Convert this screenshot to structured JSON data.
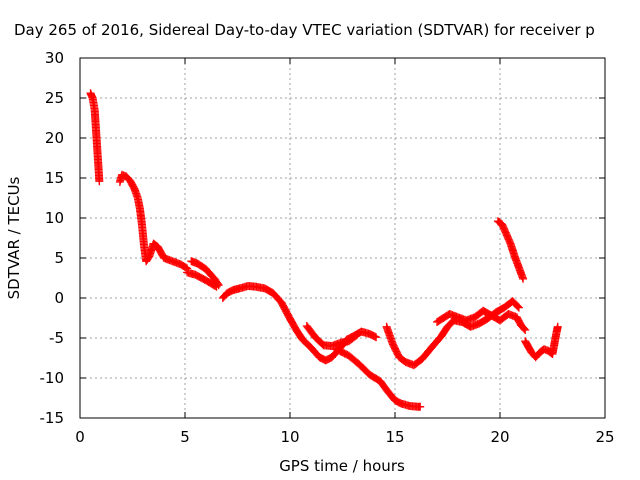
{
  "chart_data": {
    "type": "scatter",
    "title": "Day 265 of 2016, Sidereal Day-to-day VTEC variation (SDTVAR) for receiver p",
    "xlabel": "GPS time / hours",
    "ylabel": "SDTVAR / TECUs",
    "xlim": [
      0,
      25
    ],
    "ylim": [
      -15,
      30
    ],
    "xticks": [
      "0",
      "5",
      "10",
      "15",
      "20",
      "25"
    ],
    "yticks": [
      "30",
      "25",
      "20",
      "15",
      "10",
      "5",
      "0",
      "-5",
      "-10",
      "-15"
    ],
    "grid": true,
    "legend": "none",
    "marker": "plus",
    "color": "#ff0000",
    "series": [
      {
        "segments": [
          [
            [
              0.5,
              25.6
            ],
            [
              0.6,
              25.0
            ],
            [
              0.7,
              23.5
            ],
            [
              0.75,
              21.5
            ],
            [
              0.8,
              19.5
            ],
            [
              0.85,
              17.5
            ],
            [
              0.9,
              15.5
            ],
            [
              0.92,
              14.6
            ]
          ],
          [
            [
              1.9,
              14.5
            ],
            [
              2.0,
              15.4
            ],
            [
              2.2,
              15.2
            ],
            [
              2.4,
              14.6
            ],
            [
              2.6,
              13.6
            ],
            [
              2.75,
              12.5
            ],
            [
              2.85,
              11.2
            ],
            [
              2.95,
              9.2
            ],
            [
              3.05,
              6.5
            ],
            [
              3.15,
              4.6
            ],
            [
              3.3,
              5.2
            ],
            [
              3.5,
              6.8
            ],
            [
              3.7,
              6.4
            ],
            [
              4.0,
              5.0
            ],
            [
              4.4,
              4.6
            ],
            [
              4.8,
              4.2
            ],
            [
              5.1,
              3.7
            ]
          ],
          [
            [
              5.1,
              3.2
            ],
            [
              5.5,
              2.9
            ],
            [
              6.0,
              2.2
            ],
            [
              6.5,
              1.4
            ]
          ],
          [
            [
              5.3,
              4.6
            ],
            [
              5.6,
              4.3
            ],
            [
              6.0,
              3.6
            ],
            [
              6.4,
              2.4
            ],
            [
              6.6,
              1.6
            ]
          ],
          [
            [
              6.8,
              0.0
            ],
            [
              7.0,
              0.6
            ],
            [
              7.3,
              1.0
            ],
            [
              7.6,
              1.2
            ],
            [
              8.0,
              1.5
            ],
            [
              8.4,
              1.4
            ],
            [
              8.8,
              1.2
            ],
            [
              9.2,
              0.6
            ],
            [
              9.6,
              -0.6
            ],
            [
              10.0,
              -2.6
            ],
            [
              10.3,
              -4.0
            ],
            [
              10.6,
              -5.2
            ],
            [
              11.0,
              -6.2
            ],
            [
              11.4,
              -7.4
            ],
            [
              11.7,
              -7.8
            ],
            [
              12.0,
              -7.4
            ],
            [
              12.4,
              -6.2
            ],
            [
              12.7,
              -5.2
            ],
            [
              13.0,
              -4.8
            ],
            [
              13.4,
              -4.2
            ],
            [
              13.8,
              -4.5
            ],
            [
              14.1,
              -4.9
            ]
          ],
          [
            [
              10.8,
              -3.5
            ],
            [
              11.2,
              -4.9
            ],
            [
              11.6,
              -5.9
            ],
            [
              12.0,
              -6.0
            ],
            [
              12.4,
              -5.6
            ],
            [
              12.8,
              -5.4
            ],
            [
              13.2,
              -4.6
            ]
          ],
          [
            [
              12.2,
              -6.4
            ],
            [
              12.8,
              -7.2
            ],
            [
              13.3,
              -8.3
            ],
            [
              13.8,
              -9.6
            ],
            [
              14.3,
              -10.4
            ],
            [
              14.6,
              -11.5
            ],
            [
              15.0,
              -12.8
            ],
            [
              15.3,
              -13.2
            ],
            [
              15.7,
              -13.5
            ],
            [
              16.1,
              -13.6
            ],
            [
              16.2,
              -13.6
            ]
          ],
          [
            [
              14.6,
              -3.6
            ],
            [
              14.9,
              -5.8
            ],
            [
              15.2,
              -7.4
            ],
            [
              15.5,
              -8.0
            ],
            [
              15.9,
              -8.4
            ],
            [
              16.3,
              -7.6
            ],
            [
              16.8,
              -6.0
            ],
            [
              17.2,
              -4.8
            ],
            [
              17.5,
              -3.6
            ],
            [
              17.8,
              -2.8
            ],
            [
              18.2,
              -3.0
            ],
            [
              18.6,
              -3.6
            ],
            [
              19.0,
              -3.2
            ],
            [
              19.4,
              -2.6
            ],
            [
              19.8,
              -1.8
            ],
            [
              20.2,
              -1.2
            ],
            [
              20.6,
              -0.4
            ],
            [
              20.9,
              -1.2
            ]
          ],
          [
            [
              17.0,
              -3.0
            ],
            [
              17.3,
              -2.5
            ],
            [
              17.6,
              -2.0
            ],
            [
              18.0,
              -2.4
            ],
            [
              18.4,
              -2.8
            ],
            [
              18.8,
              -2.4
            ],
            [
              19.2,
              -1.6
            ],
            [
              19.6,
              -2.2
            ],
            [
              20.0,
              -2.8
            ],
            [
              20.4,
              -2.0
            ],
            [
              20.8,
              -2.4
            ],
            [
              21.0,
              -3.4
            ],
            [
              21.2,
              -4.0
            ]
          ],
          [
            [
              19.9,
              9.6
            ],
            [
              20.1,
              9.2
            ],
            [
              20.3,
              8.0
            ],
            [
              20.5,
              6.8
            ],
            [
              20.7,
              5.2
            ],
            [
              20.9,
              3.8
            ],
            [
              21.1,
              2.4
            ]
          ],
          [
            [
              21.2,
              -5.4
            ],
            [
              21.5,
              -6.8
            ],
            [
              21.7,
              -7.4
            ],
            [
              21.9,
              -6.8
            ],
            [
              22.1,
              -6.4
            ],
            [
              22.3,
              -6.6
            ],
            [
              22.5,
              -7.0
            ],
            [
              22.6,
              -5.6
            ],
            [
              22.7,
              -4.2
            ],
            [
              22.75,
              -3.6
            ]
          ]
        ]
      }
    ]
  }
}
